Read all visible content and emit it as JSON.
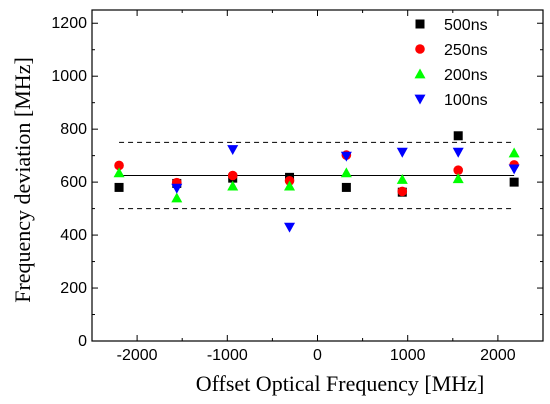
{
  "chart_data": {
    "type": "scatter",
    "title": "",
    "xlabel": "Offset Optical Frequency [MHz]",
    "ylabel": "Frequency deviation [MHz]",
    "xlim": [
      -2500,
      2500
    ],
    "ylim": [
      0,
      1250
    ],
    "xticks": [
      -2000,
      -1000,
      0,
      1000,
      2000
    ],
    "yticks": [
      0,
      200,
      400,
      600,
      800,
      1000,
      1200
    ],
    "xtick_labels": [
      "-2000",
      "-1000",
      "0",
      "1000",
      "2000"
    ],
    "ytick_labels": [
      "0",
      "200",
      "400",
      "600",
      "800",
      "1000",
      "1200"
    ],
    "grid": false,
    "legend_position": "top-right",
    "series": [
      {
        "name": "500ns",
        "marker": "square",
        "color": "#000000",
        "points": [
          [
            -2200,
            580
          ],
          [
            -1560,
            595
          ],
          [
            -940,
            615
          ],
          [
            -310,
            618
          ],
          [
            320,
            580
          ],
          [
            940,
            562
          ],
          [
            1560,
            775
          ],
          [
            2180,
            600
          ]
        ]
      },
      {
        "name": "250ns",
        "marker": "circle",
        "color": "#ff0000",
        "points": [
          [
            -2200,
            663
          ],
          [
            -1560,
            598
          ],
          [
            -940,
            625
          ],
          [
            -310,
            605
          ],
          [
            320,
            702
          ],
          [
            940,
            565
          ],
          [
            1560,
            645
          ],
          [
            2180,
            665
          ]
        ]
      },
      {
        "name": "200ns",
        "marker": "triangle-up",
        "color": "#00ff00",
        "points": [
          [
            -2200,
            635
          ],
          [
            -1560,
            540
          ],
          [
            -940,
            585
          ],
          [
            -310,
            585
          ],
          [
            320,
            635
          ],
          [
            940,
            610
          ],
          [
            1560,
            613
          ],
          [
            2180,
            710
          ]
        ]
      },
      {
        "name": "100ns",
        "marker": "triangle-down",
        "color": "#0000ff",
        "points": [
          [
            -1560,
            577
          ],
          [
            -940,
            723
          ],
          [
            -310,
            430
          ],
          [
            320,
            698
          ],
          [
            940,
            713
          ],
          [
            1560,
            713
          ],
          [
            2180,
            650
          ]
        ]
      }
    ],
    "reference_lines": [
      {
        "style": "solid",
        "y": 625,
        "x_range": [
          -2200,
          2180
        ]
      },
      {
        "style": "dashed",
        "y": 750,
        "x_range": [
          -2200,
          2180
        ]
      },
      {
        "style": "dashed",
        "y": 500,
        "x_range": [
          -2200,
          2180
        ]
      }
    ]
  }
}
